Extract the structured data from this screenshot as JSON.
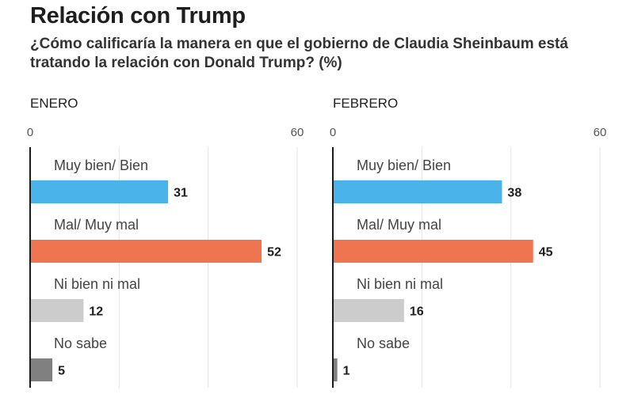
{
  "header": {
    "title": "Relación con Trump",
    "subtitle": "¿Cómo calificaría la manera en que el gobierno de Claudia Sheinbaum está tratando la relación con Donald Trump? (%)"
  },
  "chart_data": [
    {
      "type": "bar",
      "orientation": "horizontal",
      "title": "ENERO",
      "xlim": [
        0,
        60
      ],
      "ticks": [
        0,
        60
      ],
      "grid": true,
      "categories": [
        "Muy bien/ Bien",
        "Mal/ Muy mal",
        "Ni bien ni mal",
        "No sabe"
      ],
      "values": [
        31,
        52,
        12,
        5
      ],
      "colors": [
        "#4ab3ea",
        "#ee7550",
        "#cccccc",
        "#808080"
      ]
    },
    {
      "type": "bar",
      "orientation": "horizontal",
      "title": "FEBRERO",
      "xlim": [
        0,
        60
      ],
      "ticks": [
        0,
        60
      ],
      "grid": true,
      "categories": [
        "Muy bien/ Bien",
        "Mal/ Muy mal",
        "Ni bien ni mal",
        "No sabe"
      ],
      "values": [
        38,
        45,
        16,
        1
      ],
      "colors": [
        "#4ab3ea",
        "#ee7550",
        "#cccccc",
        "#808080"
      ]
    }
  ]
}
